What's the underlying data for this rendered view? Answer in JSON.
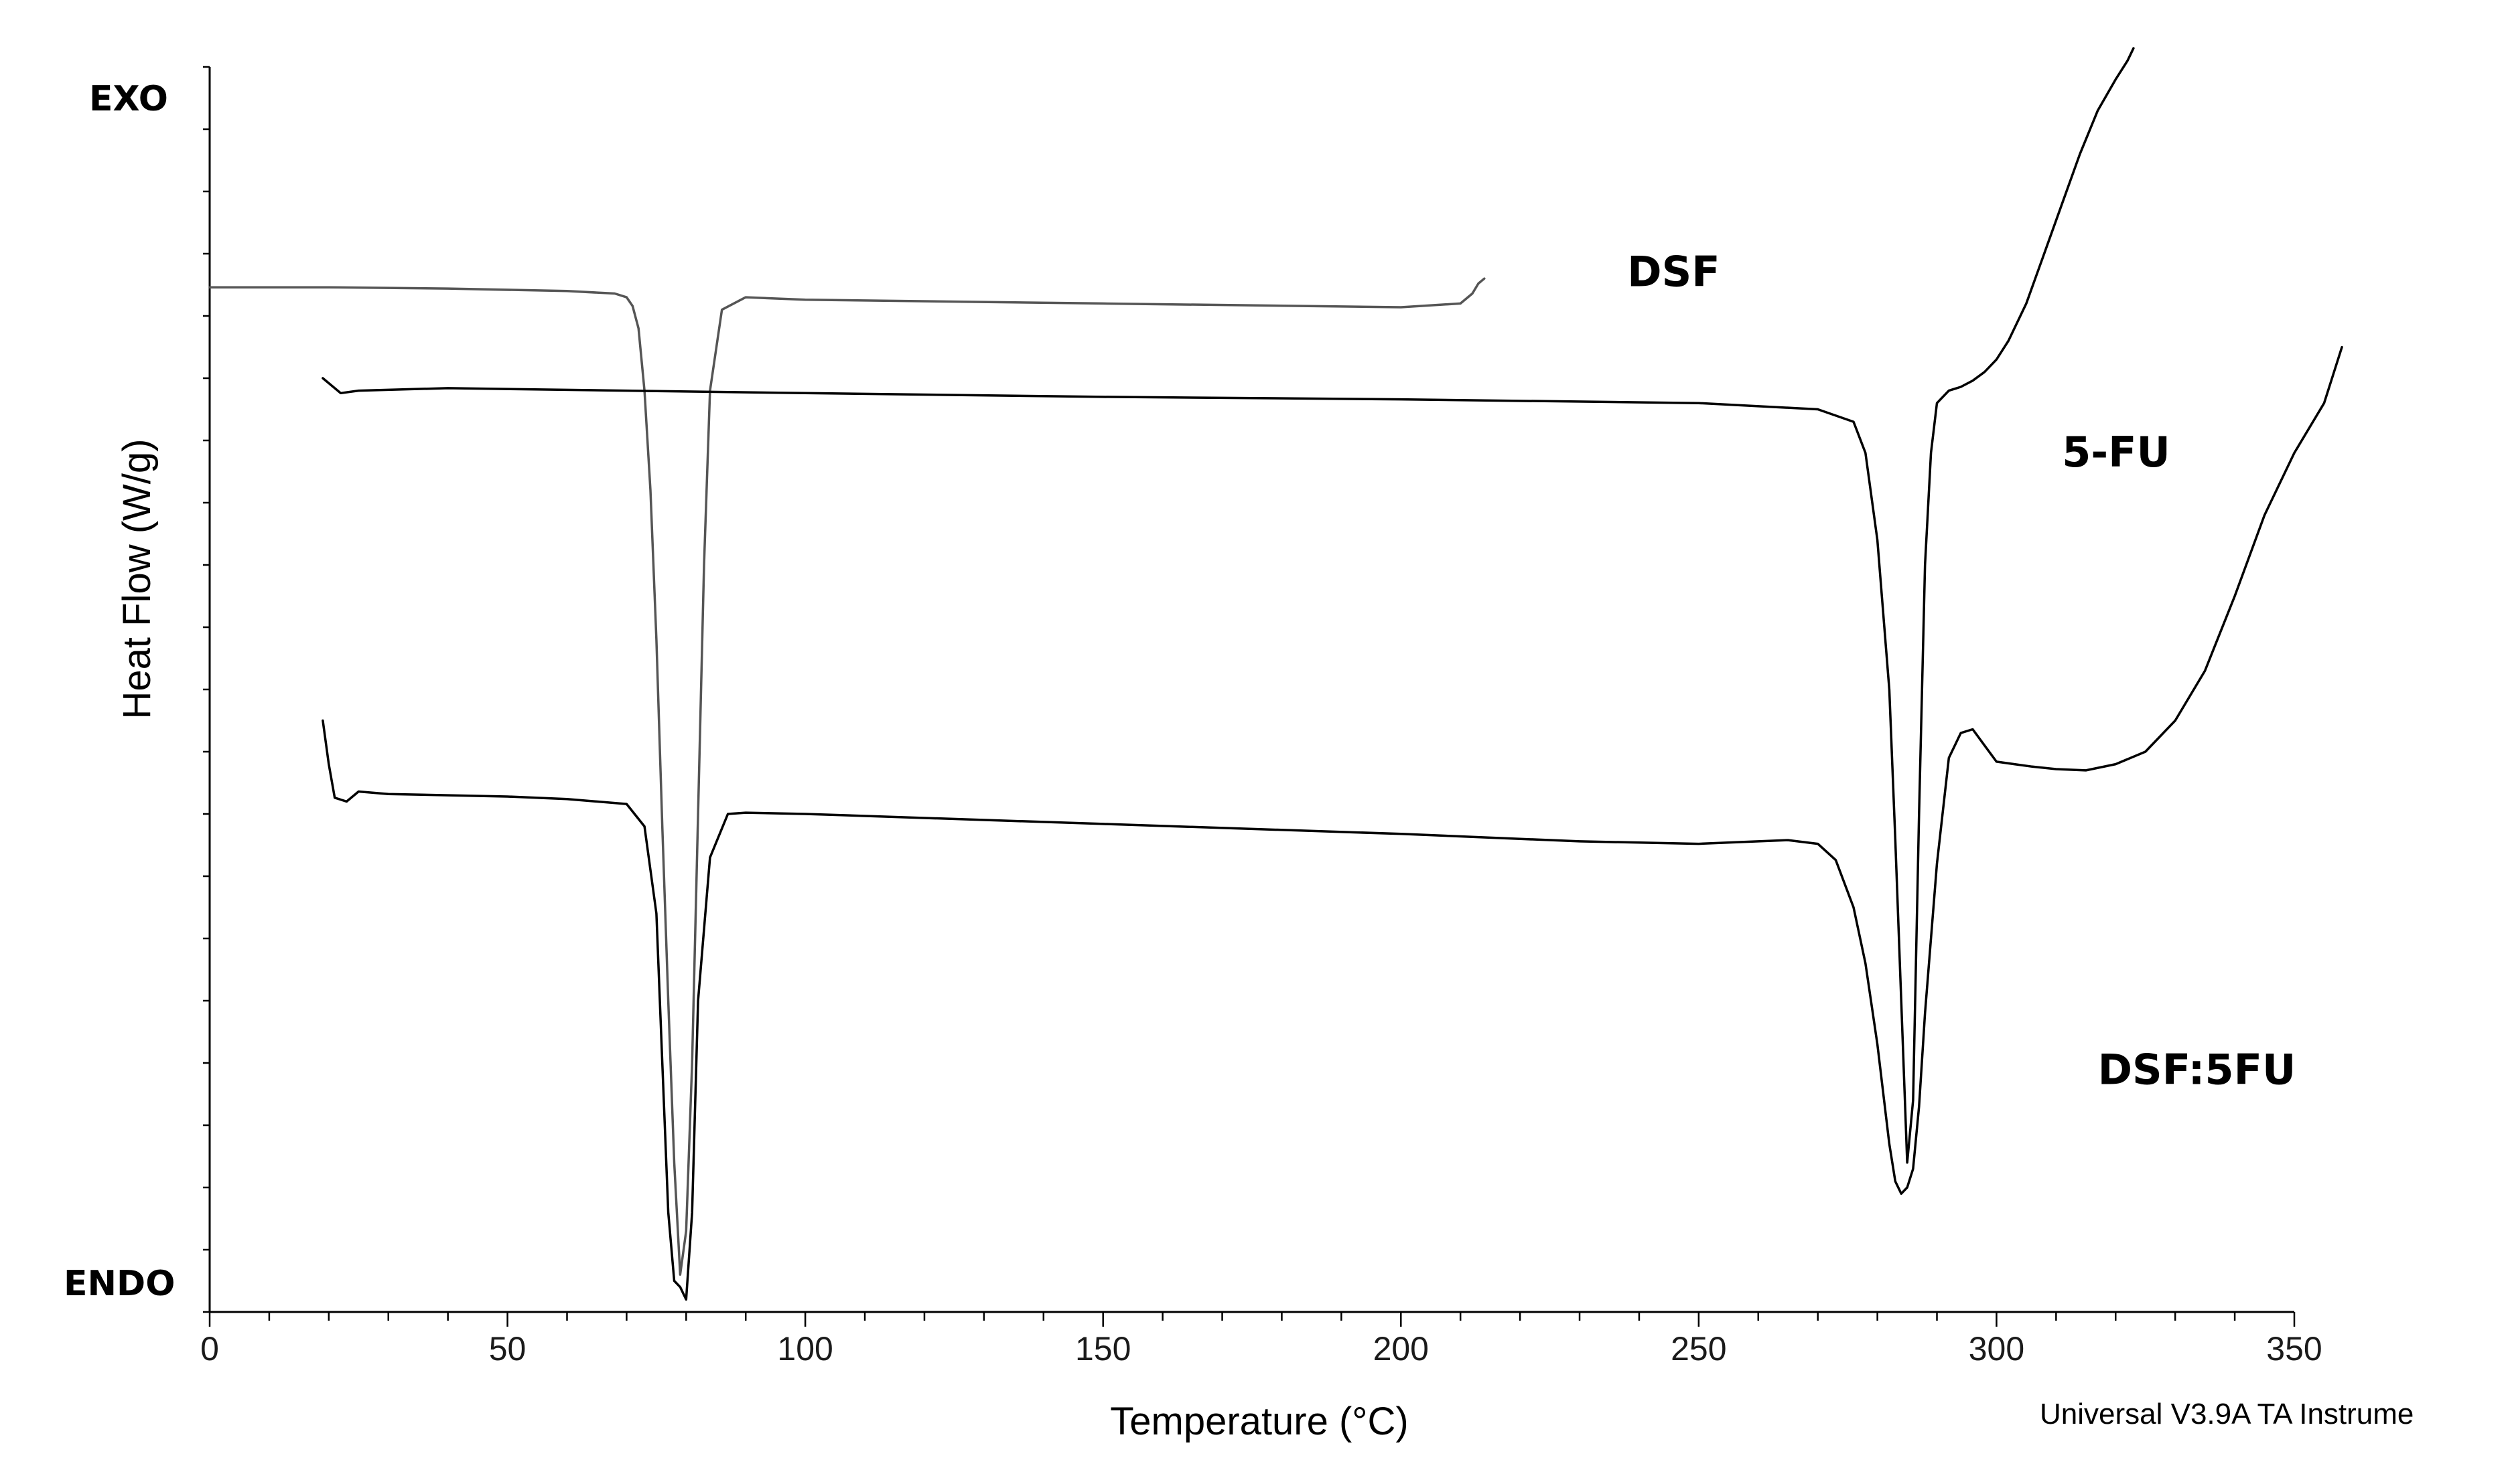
{
  "chart_data": {
    "type": "line",
    "xlabel": "Temperature (°C)",
    "ylabel": "Heat Flow (W/g)",
    "xlim": [
      0,
      350
    ],
    "xticks": [
      0,
      50,
      100,
      150,
      200,
      250,
      300,
      350
    ],
    "xtick_labels": [
      "0",
      "50",
      "100",
      "150",
      "200",
      "250",
      "300",
      "350"
    ],
    "ylim": [
      0,
      100
    ],
    "y_top_label": "EXO",
    "y_bottom_label": "ENDO",
    "footer": "Universal V3.9A TA Instrume",
    "grid": false,
    "series": [
      {
        "name": "DSF",
        "color": "#555555",
        "x": [
          0,
          20,
          40,
          60,
          68,
          70,
          71,
          72,
          73,
          74,
          75,
          76,
          77,
          78,
          79,
          80,
          81,
          82,
          83,
          84,
          86,
          90,
          100,
          150,
          200,
          210,
          212,
          213,
          214
        ],
        "y": [
          82.3,
          82.3,
          82.2,
          82.0,
          81.8,
          81.5,
          80.8,
          79.0,
          74.0,
          66.0,
          54.0,
          39.0,
          25.0,
          12.0,
          3.0,
          6.5,
          20.0,
          40.0,
          60.0,
          74.0,
          80.5,
          81.5,
          81.3,
          81.0,
          80.7,
          81.0,
          81.8,
          82.6,
          83.0
        ]
      },
      {
        "name": "5-FU",
        "color": "#000000",
        "x": [
          19,
          22,
          25,
          40,
          100,
          150,
          200,
          250,
          270,
          276,
          278,
          280,
          282,
          283,
          284,
          285,
          286,
          287,
          288,
          289,
          290,
          292,
          294,
          296,
          298,
          300,
          302,
          305,
          308,
          311,
          314,
          317,
          320,
          322,
          323
        ],
        "y": [
          75.0,
          73.8,
          74.0,
          74.2,
          73.8,
          73.5,
          73.3,
          73.0,
          72.5,
          71.5,
          69.0,
          62.0,
          50.0,
          38.0,
          25.0,
          12.0,
          17.0,
          40.0,
          60.0,
          69.0,
          73.0,
          74.0,
          74.3,
          74.8,
          75.5,
          76.5,
          78.0,
          81.0,
          85.0,
          89.0,
          93.0,
          96.5,
          99.0,
          100.5,
          101.5
        ]
      },
      {
        "name": "DSF:5FU",
        "color": "#000000",
        "x": [
          19,
          20,
          21,
          23,
          25,
          30,
          50,
          60,
          70,
          73,
          75,
          76,
          77,
          78,
          79,
          80,
          81,
          82,
          84,
          87,
          90,
          100,
          150,
          200,
          230,
          250,
          260,
          265,
          270,
          273,
          276,
          278,
          280,
          282,
          283,
          284,
          285,
          286,
          287,
          288,
          290,
          292,
          294,
          296,
          298,
          300,
          303,
          306,
          310,
          315,
          320,
          325,
          330,
          335,
          340,
          345,
          350,
          355,
          358
        ],
        "y": [
          47.5,
          44.0,
          41.3,
          41.0,
          41.8,
          41.6,
          41.4,
          41.2,
          40.8,
          39.0,
          32.0,
          20.0,
          8.0,
          2.5,
          2.0,
          1.0,
          8.0,
          25.0,
          36.5,
          40.0,
          40.1,
          40.0,
          39.2,
          38.4,
          37.8,
          37.6,
          37.8,
          37.9,
          37.6,
          36.3,
          32.5,
          28.0,
          21.5,
          13.5,
          10.5,
          9.5,
          10.0,
          11.5,
          16.5,
          24.0,
          36.0,
          44.5,
          46.5,
          46.8,
          45.5,
          44.2,
          44.0,
          43.8,
          43.6,
          43.5,
          44.0,
          45.0,
          47.5,
          51.5,
          57.5,
          64.0,
          69.0,
          73.0,
          77.5
        ]
      }
    ],
    "series_label_positions": {
      "DSF": {
        "x": 238,
        "y": 82.4
      },
      "5-FU": {
        "x": 311,
        "y": 67.9
      },
      "DSF:5FU": {
        "x": 317,
        "y": 18.3
      }
    }
  }
}
